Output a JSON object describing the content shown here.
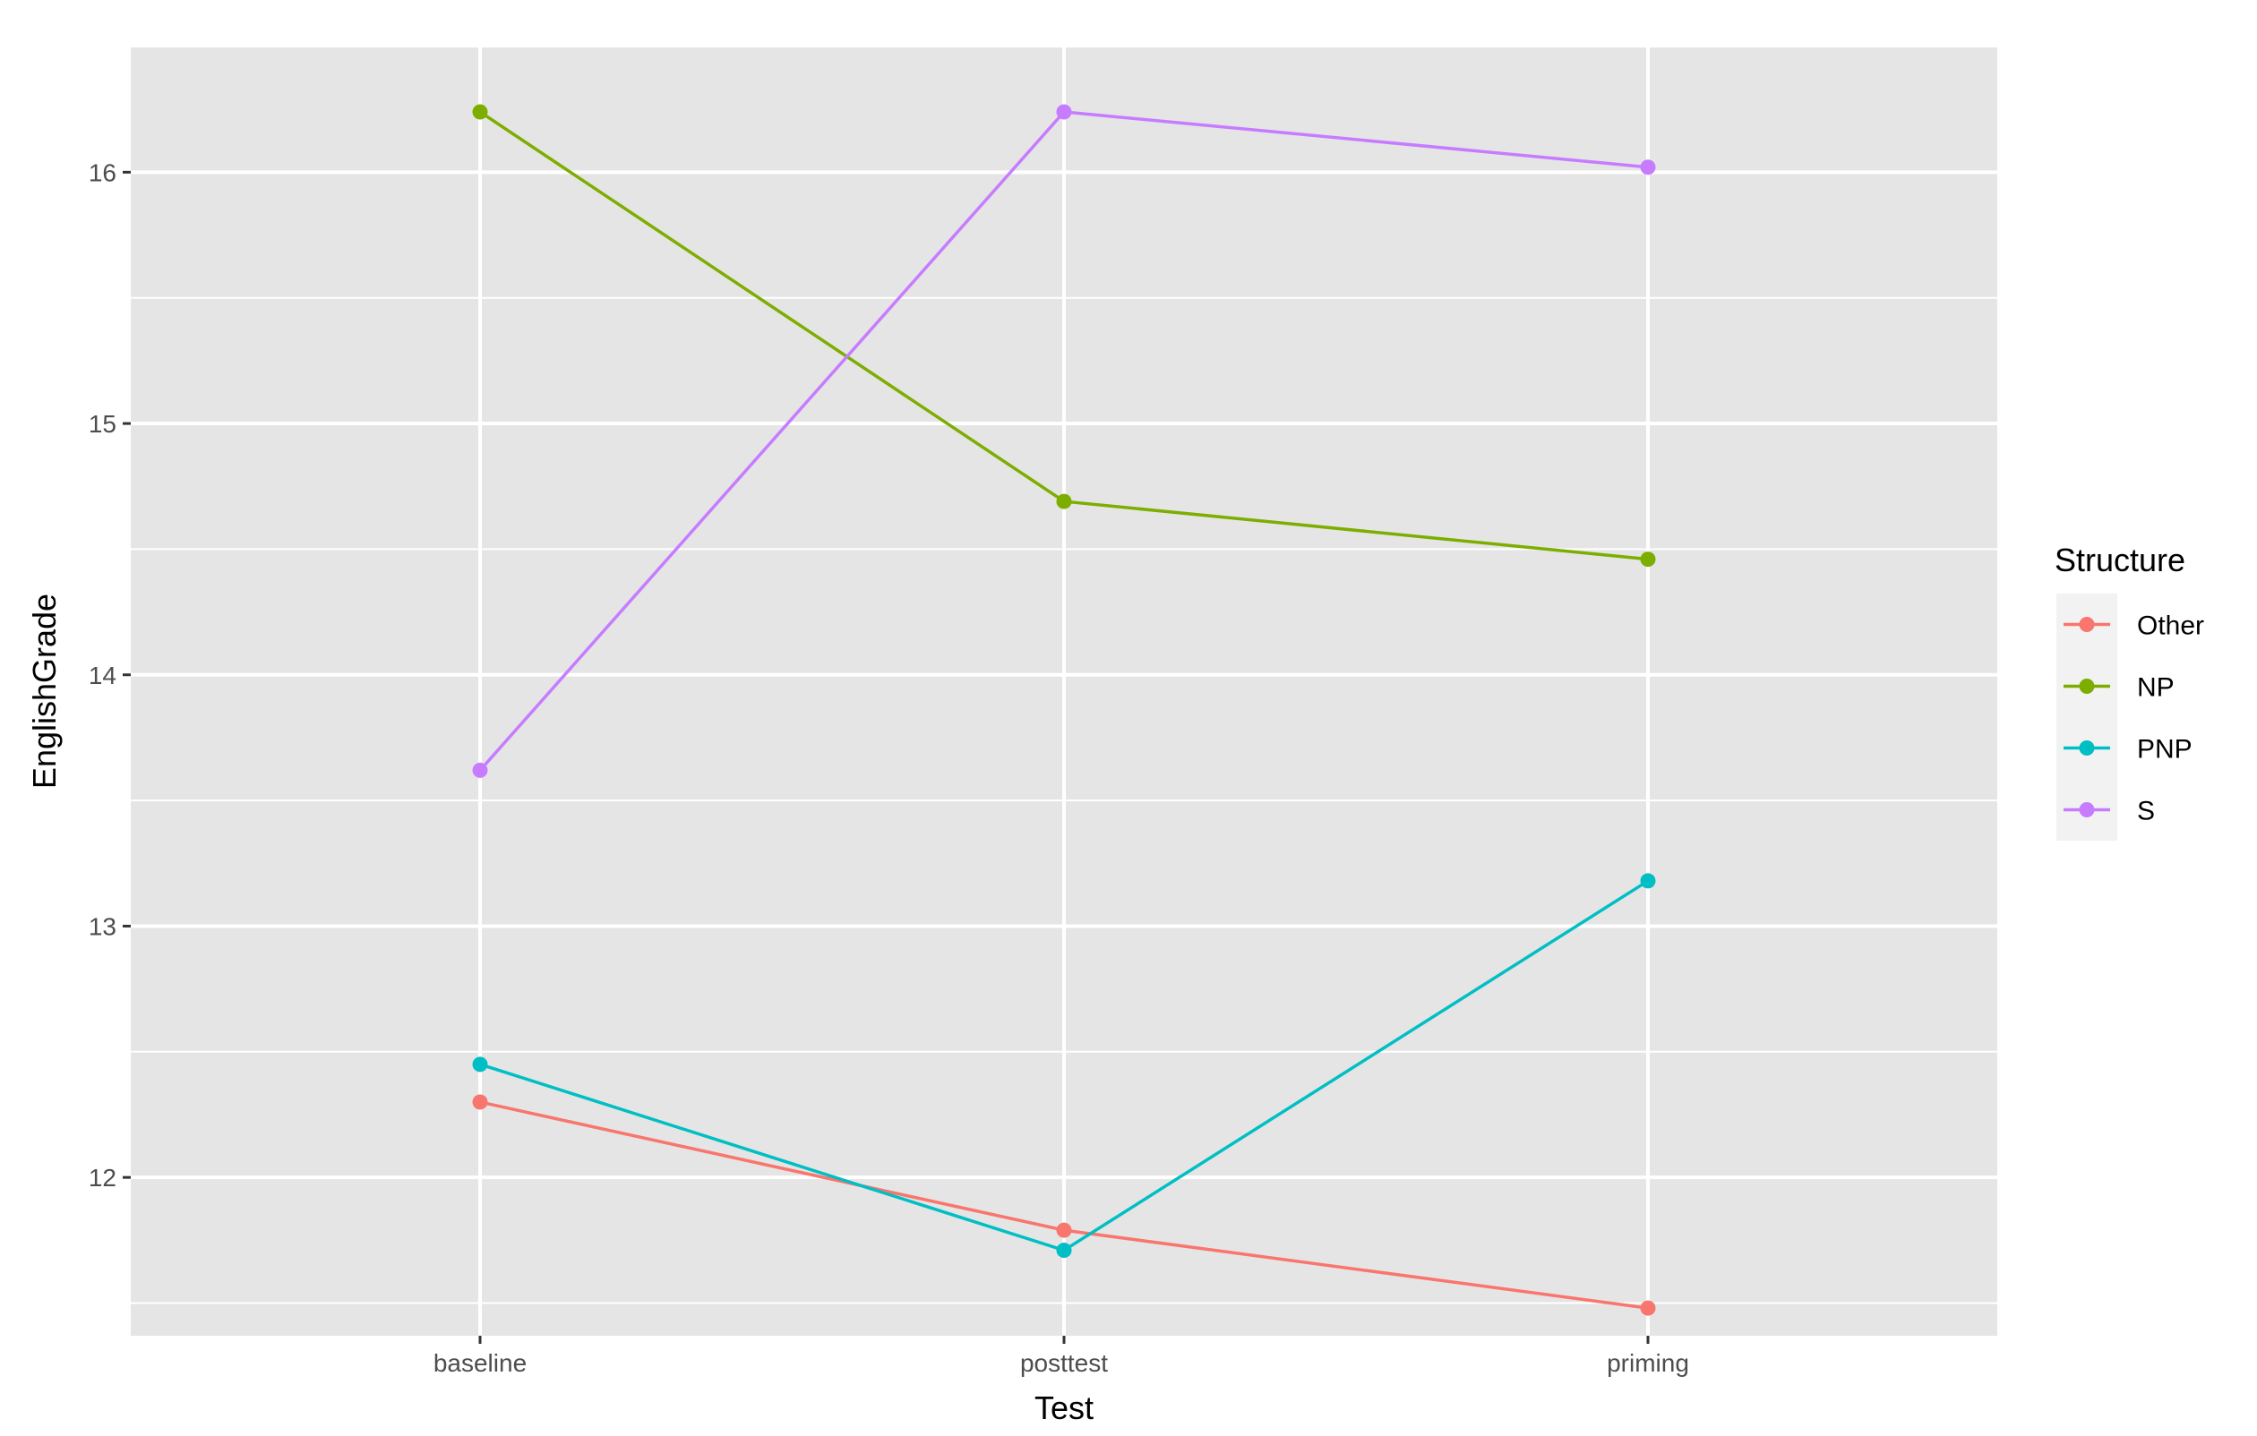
{
  "chart_data": {
    "type": "line",
    "title": "",
    "xlabel": "Test",
    "ylabel": "EnglishGrade",
    "categories": [
      "baseline",
      "posttest",
      "priming"
    ],
    "ylim": [
      11.37,
      16.5
    ],
    "y_ticks": [
      12,
      13,
      14,
      15,
      16
    ],
    "y_minor_ticks": [
      11.5,
      12.5,
      13.5,
      14.5,
      15.5,
      16.5
    ],
    "grid": true,
    "legend": {
      "title": "Structure",
      "position": "right"
    },
    "background_color": "#e5e5e5",
    "grid_color": "#ffffff",
    "series": [
      {
        "name": "Other",
        "color": "#f8766d",
        "values": [
          12.3,
          11.79,
          11.48
        ]
      },
      {
        "name": "NP",
        "color": "#7cae00",
        "values": [
          16.24,
          14.69,
          14.46
        ]
      },
      {
        "name": "PNP",
        "color": "#00bfc4",
        "values": [
          12.45,
          11.71,
          13.18
        ]
      },
      {
        "name": "S",
        "color": "#c77cff",
        "values": [
          13.62,
          16.24,
          16.02
        ]
      }
    ]
  }
}
